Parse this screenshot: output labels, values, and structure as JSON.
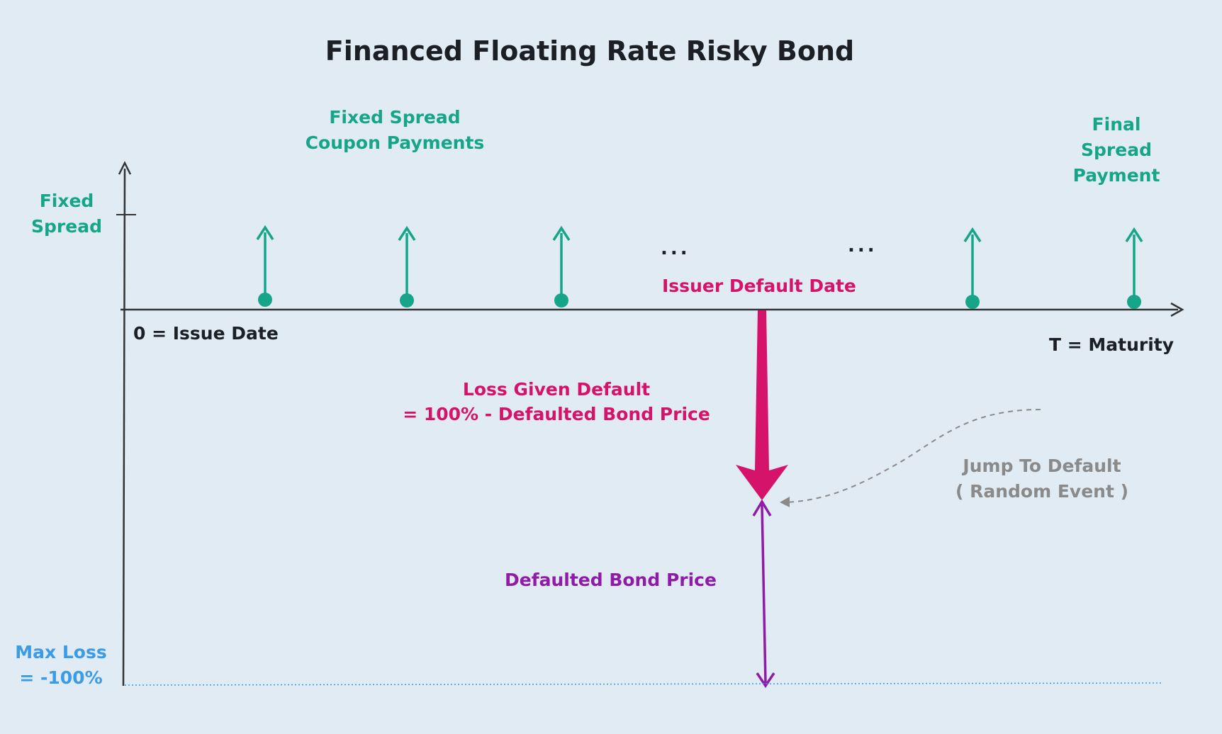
{
  "title": "Financed Floating Rate Risky Bond",
  "labels": {
    "coupon_line1": "Fixed Spread",
    "coupon_line2": "Coupon Payments",
    "final_line1": "Final",
    "final_line2": "Spread",
    "final_line3": "Payment",
    "y_label_line1": "Fixed",
    "y_label_line2": "Spread",
    "ellipsis_left": "...",
    "ellipsis_right": "...",
    "issuer_default_date": "Issuer Default Date",
    "issue_date": "0 = Issue Date",
    "maturity": "T = Maturity",
    "lgd_line1": "Loss Given Default",
    "lgd_line2": "= 100% - Defaulted Bond Price",
    "jump_line1": "Jump To Default",
    "jump_line2": "( Random Event )",
    "defaulted_price": "Defaulted Bond Price",
    "max_loss_line1": "Max Loss",
    "max_loss_line2": "= -100%"
  },
  "colors": {
    "coupon": "#16a589",
    "default": "#d6136a",
    "defaulted_price": "#8f1ba8",
    "jump": "#8a8a8a",
    "max_loss": "#3a9be6",
    "axis": "#333333"
  }
}
